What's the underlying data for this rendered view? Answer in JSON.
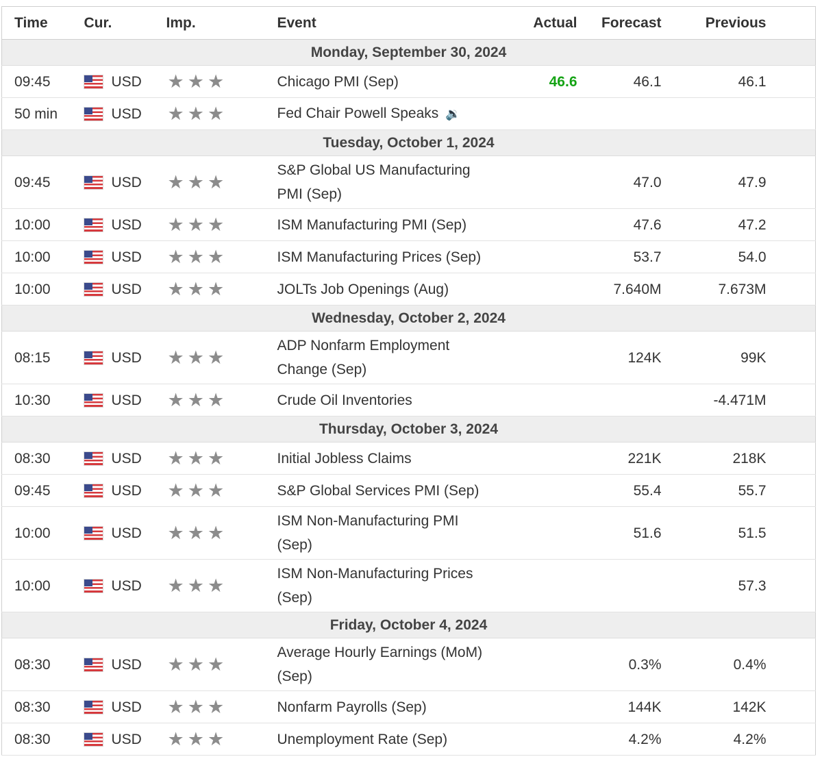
{
  "columns": {
    "time": "Time",
    "currency": "Cur.",
    "importance": "Imp.",
    "event": "Event",
    "actual": "Actual",
    "forecast": "Forecast",
    "previous": "Previous"
  },
  "colors": {
    "actual_better": "#15a315",
    "day_header_bg": "#eeeeee",
    "star": "#8c8c8c"
  },
  "days": [
    {
      "date": "Monday, September 30, 2024",
      "events": [
        {
          "time": "09:45",
          "currency": "USD",
          "flag": "us-flag-icon",
          "importance": 3,
          "event": "Chicago PMI (Sep)",
          "actual": "46.6",
          "forecast": "46.1",
          "previous": "46.1"
        },
        {
          "time": "50 min",
          "currency": "USD",
          "flag": "us-flag-icon",
          "importance": 3,
          "event": "Fed Chair Powell Speaks",
          "speech_icon": "speaker-icon",
          "actual": "",
          "forecast": "",
          "previous": ""
        }
      ]
    },
    {
      "date": "Tuesday, October 1, 2024",
      "events": [
        {
          "time": "09:45",
          "currency": "USD",
          "flag": "us-flag-icon",
          "importance": 3,
          "event": "S&P Global US Manufacturing PMI (Sep)",
          "actual": "",
          "forecast": "47.0",
          "previous": "47.9"
        },
        {
          "time": "10:00",
          "currency": "USD",
          "flag": "us-flag-icon",
          "importance": 3,
          "event": "ISM Manufacturing PMI (Sep)",
          "actual": "",
          "forecast": "47.6",
          "previous": "47.2"
        },
        {
          "time": "10:00",
          "currency": "USD",
          "flag": "us-flag-icon",
          "importance": 3,
          "event": "ISM Manufacturing Prices (Sep)",
          "actual": "",
          "forecast": "53.7",
          "previous": "54.0"
        },
        {
          "time": "10:00",
          "currency": "USD",
          "flag": "us-flag-icon",
          "importance": 3,
          "event": "JOLTs Job Openings (Aug)",
          "actual": "",
          "forecast": "7.640M",
          "previous": "7.673M"
        }
      ]
    },
    {
      "date": "Wednesday, October 2, 2024",
      "events": [
        {
          "time": "08:15",
          "currency": "USD",
          "flag": "us-flag-icon",
          "importance": 3,
          "event": "ADP Nonfarm Employment Change (Sep)",
          "actual": "",
          "forecast": "124K",
          "previous": "99K"
        },
        {
          "time": "10:30",
          "currency": "USD",
          "flag": "us-flag-icon",
          "importance": 3,
          "event": "Crude Oil Inventories",
          "actual": "",
          "forecast": "",
          "previous": "-4.471M"
        }
      ]
    },
    {
      "date": "Thursday, October 3, 2024",
      "events": [
        {
          "time": "08:30",
          "currency": "USD",
          "flag": "us-flag-icon",
          "importance": 3,
          "event": "Initial Jobless Claims",
          "actual": "",
          "forecast": "221K",
          "previous": "218K"
        },
        {
          "time": "09:45",
          "currency": "USD",
          "flag": "us-flag-icon",
          "importance": 3,
          "event": "S&P Global Services PMI (Sep)",
          "actual": "",
          "forecast": "55.4",
          "previous": "55.7"
        },
        {
          "time": "10:00",
          "currency": "USD",
          "flag": "us-flag-icon",
          "importance": 3,
          "event": "ISM Non-Manufacturing PMI (Sep)",
          "actual": "",
          "forecast": "51.6",
          "previous": "51.5"
        },
        {
          "time": "10:00",
          "currency": "USD",
          "flag": "us-flag-icon",
          "importance": 3,
          "event": "ISM Non-Manufacturing Prices (Sep)",
          "actual": "",
          "forecast": "",
          "previous": "57.3"
        }
      ]
    },
    {
      "date": "Friday, October 4, 2024",
      "events": [
        {
          "time": "08:30",
          "currency": "USD",
          "flag": "us-flag-icon",
          "importance": 3,
          "event": "Average Hourly Earnings (MoM) (Sep)",
          "actual": "",
          "forecast": "0.3%",
          "previous": "0.4%"
        },
        {
          "time": "08:30",
          "currency": "USD",
          "flag": "us-flag-icon",
          "importance": 3,
          "event": "Nonfarm Payrolls (Sep)",
          "actual": "",
          "forecast": "144K",
          "previous": "142K"
        },
        {
          "time": "08:30",
          "currency": "USD",
          "flag": "us-flag-icon",
          "importance": 3,
          "event": "Unemployment Rate (Sep)",
          "actual": "",
          "forecast": "4.2%",
          "previous": "4.2%"
        }
      ]
    }
  ]
}
